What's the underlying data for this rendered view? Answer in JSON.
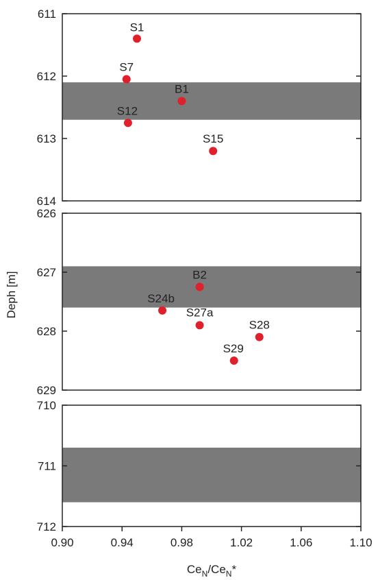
{
  "chart_data": {
    "type": "scatter",
    "title": "",
    "xlabel": "Ce",
    "xlabel_sub1": "N",
    "xlabel_mid": "/Ce",
    "xlabel_sub2": "N",
    "xlabel_end": "*",
    "ylabel": "Deph [m]",
    "xlim": [
      0.9,
      1.1
    ],
    "xticks": [
      "0.90",
      "0.94",
      "0.98",
      "1.02",
      "1.06",
      "1.10"
    ],
    "grid": false,
    "legend": "none",
    "colors": {
      "point": "#e0202a",
      "band": "#7a7a7a",
      "axis": "#222222"
    },
    "panels": [
      {
        "ylim": [
          611,
          614
        ],
        "yticks": [
          "611",
          "612",
          "613",
          "614"
        ],
        "bands": [
          [
            612.1,
            612.7
          ]
        ],
        "points": [
          {
            "label": "S1",
            "x": 0.95,
            "y": 611.4
          },
          {
            "label": "S7",
            "x": 0.943,
            "y": 612.05
          },
          {
            "label": "B1",
            "x": 0.98,
            "y": 612.4
          },
          {
            "label": "S12",
            "x": 0.944,
            "y": 612.75
          },
          {
            "label": "S15",
            "x": 1.001,
            "y": 613.2
          }
        ]
      },
      {
        "ylim": [
          626,
          629
        ],
        "yticks": [
          "626",
          "627",
          "628",
          "629"
        ],
        "bands": [
          [
            626.9,
            627.6
          ]
        ],
        "points": [
          {
            "label": "B2",
            "x": 0.992,
            "y": 627.25
          },
          {
            "label": "S24b",
            "x": 0.967,
            "y": 627.65
          },
          {
            "label": "S27a",
            "x": 0.992,
            "y": 627.9
          },
          {
            "label": "S28",
            "x": 1.032,
            "y": 628.1
          },
          {
            "label": "S29",
            "x": 1.015,
            "y": 628.5
          }
        ]
      },
      {
        "ylim": [
          710,
          712
        ],
        "yticks": [
          "710",
          "711",
          "712"
        ],
        "bands": [
          [
            710.7,
            711.6
          ]
        ],
        "points": []
      }
    ]
  }
}
